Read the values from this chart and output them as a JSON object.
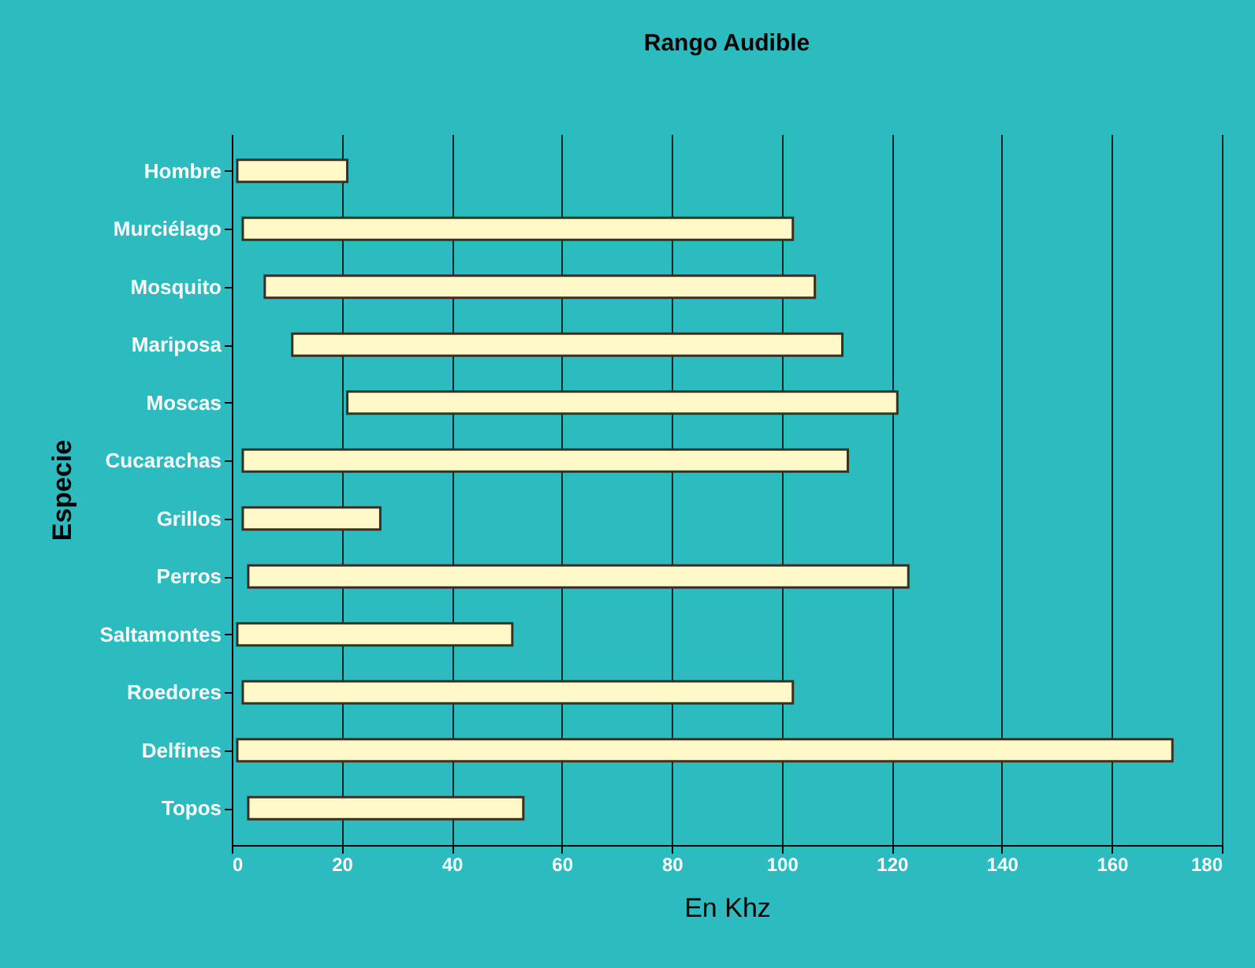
{
  "chart_data": {
    "type": "bar",
    "orientation": "horizontal",
    "title": "Rango Audible",
    "xlabel": "En Khz",
    "ylabel": "Especie",
    "categories": [
      "Hombre",
      "Murciélago",
      "Mosquito",
      "Mariposa",
      "Moscas",
      "Cucarachas",
      "Grillos",
      "Perros",
      "Saltamontes",
      "Roedores",
      "Delfines",
      "Topos"
    ],
    "base": [
      1,
      2,
      6,
      11,
      21,
      2,
      2,
      3,
      1,
      2,
      1,
      3
    ],
    "values": [
      20,
      100,
      100,
      100,
      100,
      110,
      25,
      120,
      50,
      100,
      170,
      50
    ],
    "color": "#fff8c8",
    "xlim": [
      0,
      180
    ],
    "xticks": [
      0,
      20,
      40,
      60,
      80,
      100,
      120,
      140,
      160,
      180
    ],
    "grid": "x"
  }
}
